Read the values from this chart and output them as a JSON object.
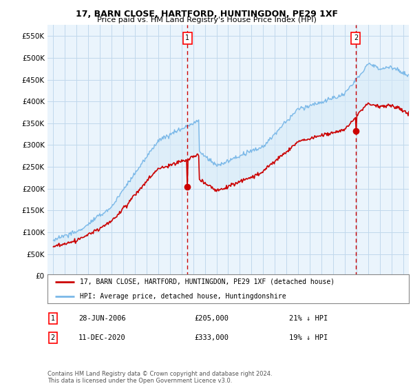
{
  "title_line1": "17, BARN CLOSE, HARTFORD, HUNTINGDON, PE29 1XF",
  "title_line2": "Price paid vs. HM Land Registry's House Price Index (HPI)",
  "ylim": [
    0,
    575000
  ],
  "yticks": [
    0,
    50000,
    100000,
    150000,
    200000,
    250000,
    300000,
    350000,
    400000,
    450000,
    500000,
    550000
  ],
  "hpi_color": "#7ab8e8",
  "hpi_fill_color": "#d6eaf8",
  "price_color": "#cc0000",
  "marker1_date_x": 2006.49,
  "marker1_y": 205000,
  "marker1_label": "1",
  "marker2_date_x": 2020.95,
  "marker2_y": 333000,
  "marker2_label": "2",
  "legend_property_label": "17, BARN CLOSE, HARTFORD, HUNTINGDON, PE29 1XF (detached house)",
  "legend_hpi_label": "HPI: Average price, detached house, Huntingdonshire",
  "annotation1": [
    "1",
    "28-JUN-2006",
    "£205,000",
    "21% ↓ HPI"
  ],
  "annotation2": [
    "2",
    "11-DEC-2020",
    "£333,000",
    "19% ↓ HPI"
  ],
  "footer": "Contains HM Land Registry data © Crown copyright and database right 2024.\nThis data is licensed under the Open Government Licence v3.0.",
  "bg_color": "#ffffff",
  "plot_bg_color": "#eaf4fc",
  "grid_color": "#c0d8ec",
  "vline_color": "#cc0000",
  "xlim_start": 1995,
  "xlim_end": 2025.5
}
